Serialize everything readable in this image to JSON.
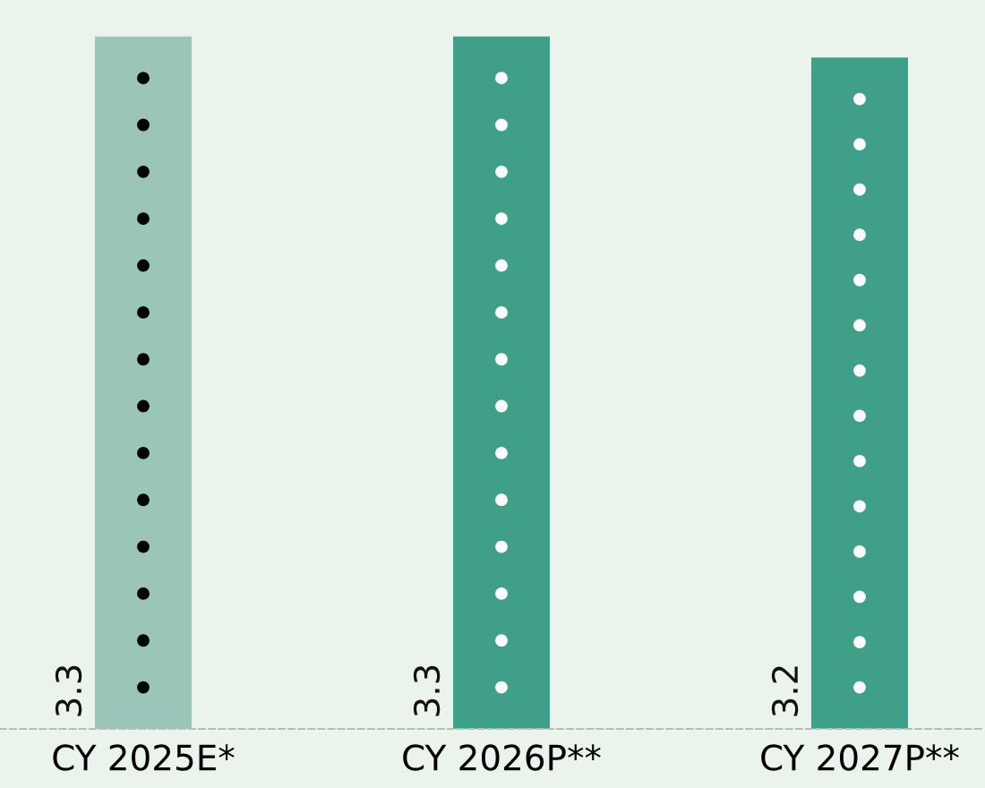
{
  "chart_data": {
    "type": "bar",
    "categories": [
      "CY 2025E*",
      "CY 2026P**",
      "CY 2027P**"
    ],
    "values": [
      3.3,
      3.3,
      3.2
    ],
    "colors": [
      "#9bc5b8",
      "#3f9f88",
      "#3f9f88"
    ],
    "data_labels": true,
    "grid": false,
    "legend": false
  }
}
